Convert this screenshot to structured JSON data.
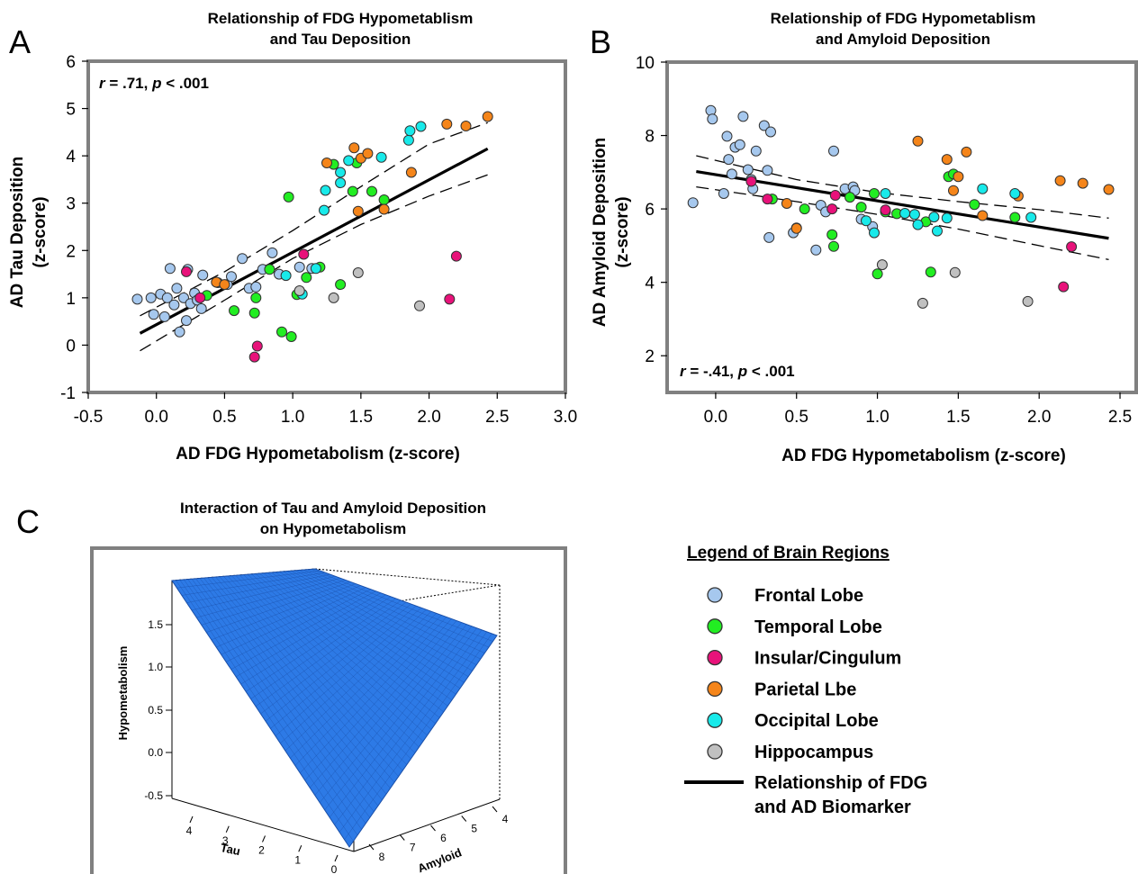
{
  "colors": {
    "frontal": "#a6c8ee",
    "temporal": "#22ee22",
    "insular": "#e8127a",
    "parietal": "#f5851a",
    "occipital": "#18eaea",
    "hippocampus": "#c0c0c0",
    "frame": "#808080",
    "surface": "#2d7ae6",
    "surface_edge": "#1a4fa8"
  },
  "panels": {
    "a": {
      "letter": "A",
      "title_line1": "Relationship of FDG Hypometablism",
      "title_line2": "and Tau Deposition",
      "stat_r": "r",
      "stat_text": " = .71, ",
      "stat_p": "p",
      "stat_text2": " < .001"
    },
    "b": {
      "letter": "B",
      "title_line1": "Relationship of FDG Hypometablism",
      "title_line2": "and Amyloid Deposition",
      "stat_r": "r",
      "stat_text": " = -.41, ",
      "stat_p": "p",
      "stat_text2": " < .001"
    },
    "c": {
      "letter": "C",
      "title_line1": "Interaction of Tau and Amyloid Deposition",
      "title_line2": "on Hypometabolism"
    }
  },
  "legend": {
    "title": "Legend of Brain Regions",
    "items": [
      {
        "key": "frontal",
        "label": "Frontal Lobe"
      },
      {
        "key": "temporal",
        "label": "Temporal Lobe"
      },
      {
        "key": "insular",
        "label": "Insular/Cingulum"
      },
      {
        "key": "parietal",
        "label": "Parietal Lbe"
      },
      {
        "key": "occipital",
        "label": "Occipital Lobe"
      },
      {
        "key": "hippocampus",
        "label": "Hippocampus"
      }
    ],
    "line_label_1": "Relationship of FDG",
    "line_label_2": "and AD Biomarker"
  },
  "chart_data": [
    {
      "type": "scatter",
      "title": "Relationship of FDG Hypometablism and Tau Deposition",
      "xlabel": "AD FDG Hypometabolism (z-score)",
      "ylabel_line1": "AD Tau Deposition",
      "ylabel_line2": "(z-score)",
      "xlim": [
        -0.5,
        3.0
      ],
      "ylim": [
        -1,
        6
      ],
      "xticks": [
        "-0.5",
        "0.0",
        "0.5",
        "1.0",
        "1.5",
        "2.0",
        "2.5",
        "3.0"
      ],
      "yticks": [
        "-1",
        "0",
        "1",
        "2",
        "3",
        "4",
        "5",
        "6"
      ],
      "annotation": "r = .71, p < .001",
      "regression": {
        "x": [
          -0.12,
          2.43
        ],
        "y": [
          0.25,
          4.15
        ]
      },
      "ci_upper": {
        "x": [
          -0.12,
          0.5,
          1.0,
          1.5,
          2.0,
          2.43
        ],
        "y": [
          0.62,
          1.55,
          2.42,
          3.35,
          4.25,
          4.7
        ]
      },
      "ci_lower": {
        "x": [
          -0.12,
          0.5,
          1.0,
          1.5,
          2.0,
          2.43
        ],
        "y": [
          -0.12,
          0.95,
          1.83,
          2.55,
          3.15,
          3.6
        ]
      },
      "series": [
        {
          "name": "Frontal Lobe",
          "key": "frontal",
          "points": [
            [
              -0.14,
              0.97
            ],
            [
              -0.04,
              1.0
            ],
            [
              -0.02,
              0.65
            ],
            [
              0.03,
              1.08
            ],
            [
              0.06,
              0.6
            ],
            [
              0.08,
              1.0
            ],
            [
              0.1,
              1.62
            ],
            [
              0.13,
              0.85
            ],
            [
              0.15,
              1.2
            ],
            [
              0.17,
              0.28
            ],
            [
              0.2,
              1.0
            ],
            [
              0.22,
              0.52
            ],
            [
              0.23,
              1.6
            ],
            [
              0.25,
              0.88
            ],
            [
              0.28,
              1.1
            ],
            [
              0.3,
              0.95
            ],
            [
              0.33,
              0.77
            ],
            [
              0.34,
              1.48
            ],
            [
              0.45,
              1.32
            ],
            [
              0.52,
              1.28
            ],
            [
              0.55,
              1.45
            ],
            [
              0.63,
              1.83
            ],
            [
              0.68,
              1.2
            ],
            [
              0.73,
              1.23
            ],
            [
              0.78,
              1.6
            ],
            [
              0.85,
              1.95
            ],
            [
              0.9,
              1.5
            ],
            [
              1.05,
              1.65
            ],
            [
              1.14,
              1.62
            ]
          ]
        },
        {
          "name": "Temporal Lobe",
          "key": "temporal",
          "points": [
            [
              0.37,
              1.05
            ],
            [
              0.57,
              0.73
            ],
            [
              0.72,
              0.68
            ],
            [
              0.73,
              1.0
            ],
            [
              0.83,
              1.6
            ],
            [
              0.92,
              0.28
            ],
            [
              0.97,
              3.13
            ],
            [
              0.99,
              0.18
            ],
            [
              1.03,
              1.07
            ],
            [
              1.1,
              1.43
            ],
            [
              1.2,
              1.65
            ],
            [
              1.3,
              3.82
            ],
            [
              1.35,
              1.28
            ],
            [
              1.44,
              3.25
            ],
            [
              1.47,
              3.85
            ],
            [
              1.58,
              3.25
            ],
            [
              1.67,
              3.07
            ]
          ]
        },
        {
          "name": "Insular/Cingulum",
          "key": "insular",
          "points": [
            [
              0.22,
              1.55
            ],
            [
              0.32,
              1.0
            ],
            [
              0.72,
              -0.25
            ],
            [
              0.74,
              -0.02
            ],
            [
              1.08,
              1.92
            ],
            [
              2.15,
              0.97
            ],
            [
              2.2,
              1.88
            ]
          ]
        },
        {
          "name": "Parietal Lbe",
          "key": "parietal",
          "points": [
            [
              0.44,
              1.33
            ],
            [
              0.5,
              1.28
            ],
            [
              1.25,
              3.85
            ],
            [
              1.45,
              4.17
            ],
            [
              1.48,
              2.83
            ],
            [
              1.5,
              3.95
            ],
            [
              1.55,
              4.05
            ],
            [
              1.67,
              2.87
            ],
            [
              1.87,
              3.65
            ],
            [
              2.13,
              4.67
            ],
            [
              2.27,
              4.63
            ],
            [
              2.43,
              4.83
            ]
          ]
        },
        {
          "name": "Occipital Lobe",
          "key": "occipital",
          "points": [
            [
              0.95,
              1.47
            ],
            [
              1.07,
              1.08
            ],
            [
              1.17,
              1.62
            ],
            [
              1.23,
              2.85
            ],
            [
              1.24,
              3.27
            ],
            [
              1.35,
              3.43
            ],
            [
              1.35,
              3.65
            ],
            [
              1.41,
              3.9
            ],
            [
              1.65,
              3.97
            ],
            [
              1.85,
              4.33
            ],
            [
              1.86,
              4.53
            ],
            [
              1.94,
              4.62
            ]
          ]
        },
        {
          "name": "Hippocampus",
          "key": "hippocampus",
          "points": [
            [
              1.05,
              1.15
            ],
            [
              1.3,
              1.0
            ],
            [
              1.48,
              1.53
            ],
            [
              1.93,
              0.83
            ]
          ]
        }
      ]
    },
    {
      "type": "scatter",
      "title": "Relationship of FDG Hypometablism and Amyloid Deposition",
      "xlabel": "AD FDG Hypometabolism (z-score)",
      "ylabel_line1": "AD Amyloid Deposition",
      "ylabel_line2": "(z-score)",
      "xlim": [
        -0.3,
        2.6
      ],
      "ylim": [
        1,
        10
      ],
      "xticks": [
        "0.0",
        "0.5",
        "1.0",
        "1.5",
        "2.0",
        "2.5"
      ],
      "xtick_values": [
        0.0,
        0.5,
        1.0,
        1.5,
        2.0,
        2.5
      ],
      "yticks": [
        "2",
        "4",
        "6",
        "8",
        "10"
      ],
      "ytick_values": [
        2,
        4,
        6,
        8,
        10
      ],
      "annotation": "r = -.41, p < .001",
      "regression": {
        "x": [
          -0.12,
          2.43
        ],
        "y": [
          7.02,
          5.2
        ]
      },
      "ci_upper": {
        "x": [
          -0.12,
          0.5,
          1.0,
          1.5,
          2.0,
          2.43
        ],
        "y": [
          7.45,
          6.8,
          6.45,
          6.2,
          5.98,
          5.75
        ]
      },
      "ci_lower": {
        "x": [
          -0.12,
          0.5,
          1.0,
          1.5,
          2.0,
          2.43
        ],
        "y": [
          6.6,
          6.2,
          5.85,
          5.45,
          5.0,
          4.62
        ]
      },
      "series": [
        {
          "name": "Frontal Lobe",
          "key": "frontal",
          "points": [
            [
              -0.14,
              6.17
            ],
            [
              -0.03,
              8.68
            ],
            [
              -0.02,
              8.45
            ],
            [
              0.05,
              6.42
            ],
            [
              0.07,
              7.98
            ],
            [
              0.08,
              7.35
            ],
            [
              0.1,
              6.95
            ],
            [
              0.12,
              7.68
            ],
            [
              0.15,
              7.75
            ],
            [
              0.17,
              8.52
            ],
            [
              0.2,
              7.07
            ],
            [
              0.22,
              6.8
            ],
            [
              0.23,
              6.55
            ],
            [
              0.25,
              7.58
            ],
            [
              0.3,
              8.27
            ],
            [
              0.32,
              7.05
            ],
            [
              0.34,
              8.1
            ],
            [
              0.33,
              5.22
            ],
            [
              0.48,
              5.35
            ],
            [
              0.5,
              5.48
            ],
            [
              0.62,
              4.88
            ],
            [
              0.65,
              6.1
            ],
            [
              0.68,
              5.92
            ],
            [
              0.73,
              7.58
            ],
            [
              0.8,
              6.55
            ],
            [
              0.85,
              6.6
            ],
            [
              0.86,
              6.5
            ],
            [
              0.9,
              5.72
            ],
            [
              0.97,
              5.52
            ]
          ]
        },
        {
          "name": "Temporal Lobe",
          "key": "temporal",
          "points": [
            [
              0.35,
              6.27
            ],
            [
              0.55,
              6.0
            ],
            [
              0.72,
              5.3
            ],
            [
              0.73,
              4.98
            ],
            [
              0.83,
              6.32
            ],
            [
              0.9,
              6.05
            ],
            [
              0.98,
              6.42
            ],
            [
              1.0,
              4.23
            ],
            [
              1.05,
              5.92
            ],
            [
              1.12,
              5.87
            ],
            [
              1.3,
              5.65
            ],
            [
              1.33,
              4.28
            ],
            [
              1.44,
              6.88
            ],
            [
              1.47,
              6.95
            ],
            [
              1.6,
              6.12
            ],
            [
              1.85,
              5.77
            ]
          ]
        },
        {
          "name": "Insular/Cingulum",
          "key": "insular",
          "points": [
            [
              0.22,
              6.75
            ],
            [
              0.32,
              6.27
            ],
            [
              0.72,
              6.0
            ],
            [
              0.74,
              6.37
            ],
            [
              1.05,
              5.97
            ],
            [
              2.15,
              3.88
            ],
            [
              2.2,
              4.97
            ]
          ]
        },
        {
          "name": "Parietal Lbe",
          "key": "parietal",
          "points": [
            [
              0.44,
              6.15
            ],
            [
              0.5,
              5.47
            ],
            [
              1.25,
              7.85
            ],
            [
              1.43,
              7.35
            ],
            [
              1.47,
              6.5
            ],
            [
              1.5,
              6.88
            ],
            [
              1.55,
              7.55
            ],
            [
              1.65,
              5.82
            ],
            [
              1.87,
              6.35
            ],
            [
              2.13,
              6.77
            ],
            [
              2.27,
              6.7
            ],
            [
              2.43,
              6.53
            ]
          ]
        },
        {
          "name": "Occipital Lobe",
          "key": "occipital",
          "points": [
            [
              0.93,
              5.68
            ],
            [
              0.98,
              5.35
            ],
            [
              1.05,
              6.42
            ],
            [
              1.17,
              5.88
            ],
            [
              1.23,
              5.85
            ],
            [
              1.25,
              5.57
            ],
            [
              1.35,
              5.78
            ],
            [
              1.37,
              5.4
            ],
            [
              1.43,
              5.75
            ],
            [
              1.65,
              6.55
            ],
            [
              1.85,
              6.42
            ],
            [
              1.95,
              5.77
            ]
          ]
        },
        {
          "name": "Hippocampus",
          "key": "hippocampus",
          "points": [
            [
              1.03,
              4.48
            ],
            [
              1.28,
              3.43
            ],
            [
              1.48,
              4.27
            ],
            [
              1.93,
              3.48
            ]
          ]
        }
      ]
    },
    {
      "type": "surface",
      "title": "Interaction of Tau and Amyloid Deposition on Hypometabolism",
      "xlabel": "Tau",
      "ylabel": "Amyloid",
      "zlabel": "Hypometabolism",
      "tau_ticks": [
        "4",
        "3",
        "2",
        "1",
        "0"
      ],
      "amyloid_ticks": [
        "8",
        "7",
        "6",
        "5",
        "4"
      ],
      "z_ticks": [
        "1.5",
        "1.0",
        "0.5",
        "0.0",
        "-0.5"
      ],
      "z_tick_values": [
        1.5,
        1.0,
        0.5,
        0.0,
        -0.5
      ]
    }
  ]
}
